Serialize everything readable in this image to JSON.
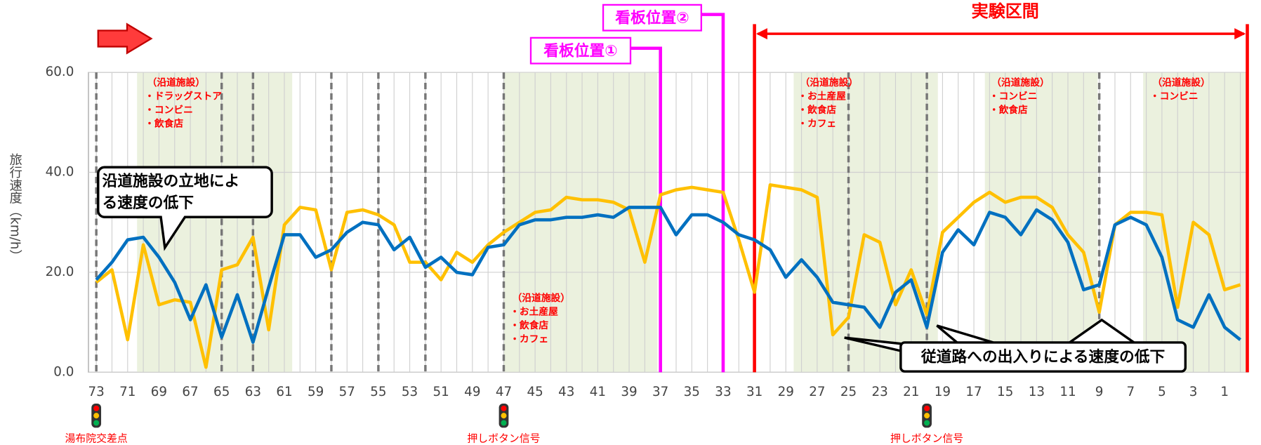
{
  "chart_data": {
    "type": "line",
    "y_label": "旅行速度（km/h）",
    "categories": [
      "73",
      null,
      "71",
      null,
      "69",
      null,
      "67",
      null,
      "65",
      null,
      "63",
      null,
      "61",
      null,
      "59",
      null,
      "57",
      null,
      "55",
      null,
      "53",
      null,
      "51",
      null,
      "49",
      null,
      "47",
      null,
      "45",
      null,
      "43",
      null,
      "41",
      null,
      "39",
      null,
      "37",
      null,
      "35",
      null,
      "33",
      null,
      "31",
      null,
      "29",
      null,
      "27",
      null,
      "25",
      null,
      "23",
      null,
      "21",
      null,
      "19",
      null,
      "17",
      null,
      "15",
      null,
      "13",
      null,
      "11",
      null,
      "9",
      null,
      "7",
      null,
      "5",
      null,
      "3",
      null,
      "1",
      null
    ],
    "series": [
      {
        "color": "#0070c0",
        "values": [
          18.5,
          22,
          26.5,
          27,
          23,
          18,
          10.5,
          17.5,
          7,
          15.5,
          6,
          17,
          27.5,
          27.5,
          23,
          24.5,
          28,
          30,
          29.5,
          24.5,
          27,
          21,
          23,
          20,
          19.5,
          25,
          25.5,
          29.5,
          30.5,
          30.5,
          31,
          31,
          31.5,
          31,
          33,
          33,
          33,
          27.5,
          31.5,
          31.5,
          30,
          27.5,
          26.5,
          24.5,
          19,
          22.5,
          19,
          14,
          13.5,
          13,
          9,
          16,
          18.5,
          9,
          24,
          28.5,
          25.5,
          32,
          31,
          27.5,
          32.5,
          30.5,
          26,
          16.5,
          17.5,
          29.5,
          31,
          29.5,
          23,
          10.5,
          9,
          15.5,
          9,
          6.5
        ]
      },
      {
        "color": "#ffc000",
        "values": [
          18,
          20.5,
          6.5,
          25.5,
          13.5,
          14.5,
          14,
          1,
          20.5,
          21.5,
          27,
          8.5,
          29.5,
          33,
          32.5,
          20.5,
          32,
          32.5,
          31.5,
          29.5,
          22,
          22,
          18.5,
          24,
          22,
          25.5,
          28,
          30,
          32,
          32.5,
          35,
          34.5,
          34.5,
          34,
          32.5,
          22,
          35.5,
          36.5,
          37,
          36.5,
          36,
          26.5,
          16,
          37.5,
          37,
          36.5,
          35,
          7.5,
          11,
          27.5,
          26,
          13.5,
          20.5,
          11.5,
          28,
          31,
          34,
          36,
          34,
          35,
          35,
          33,
          27.5,
          24,
          12,
          29.5,
          32,
          32,
          31.5,
          13,
          30,
          27.5,
          16.5,
          17.5
        ]
      }
    ],
    "ylim": [
      0,
      60
    ],
    "yticks": [
      {
        "value": 0,
        "label": "0.0"
      },
      {
        "value": 20,
        "label": "20.0"
      },
      {
        "value": 40,
        "label": "40.0"
      },
      {
        "value": 60,
        "label": "60.0"
      }
    ],
    "grid": true,
    "facilities": [
      [
        "（沿道施設）",
        "・ドラッグストア",
        "・コンビニ",
        "・飲食店"
      ],
      [
        "（沿道施設）",
        "・お土産屋",
        "・飲食店",
        "・カフェ"
      ],
      [
        "（沿道施設）",
        "・お土産屋",
        "・飲食店",
        "・カフェ"
      ],
      [
        "（沿道施設）",
        "・コンビニ",
        "・飲食店"
      ],
      [
        "（沿道施設）",
        "・コンビニ"
      ]
    ],
    "callouts": [
      [
        "沿道施設の立地によ",
        "る速度の低下"
      ],
      [
        "従道路への出入りによる速度の低下"
      ]
    ],
    "signboards": [
      "看板位置①",
      "看板位置②"
    ],
    "section_label": "実験区間",
    "signals": [
      "湯布院交差点",
      "押しボタン信号",
      "押しボタン信号"
    ]
  }
}
